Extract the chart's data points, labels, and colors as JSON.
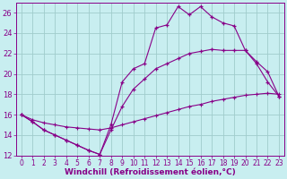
{
  "xlabel": "Windchill (Refroidissement éolien,°C)",
  "bg_color": "#c8eef0",
  "grid_color": "#a0cccc",
  "line_color": "#880088",
  "xlim": [
    -0.5,
    23.5
  ],
  "ylim": [
    12,
    27
  ],
  "xticks": [
    0,
    1,
    2,
    3,
    4,
    5,
    6,
    7,
    8,
    9,
    10,
    11,
    12,
    13,
    14,
    15,
    16,
    17,
    18,
    19,
    20,
    21,
    22,
    23
  ],
  "yticks": [
    12,
    14,
    16,
    18,
    20,
    22,
    24,
    26
  ],
  "series1_x": [
    0,
    1,
    2,
    3,
    4,
    5,
    6,
    7,
    8,
    9,
    10,
    11,
    12,
    13,
    14,
    15,
    16,
    17,
    18,
    19,
    20,
    21,
    22,
    23
  ],
  "series1_y": [
    16.0,
    15.3,
    14.5,
    14.0,
    13.5,
    13.0,
    12.5,
    12.1,
    15.0,
    19.2,
    20.5,
    21.0,
    24.5,
    24.8,
    26.6,
    25.8,
    26.6,
    25.6,
    25.0,
    24.7,
    22.3,
    21.0,
    19.2,
    17.8
  ],
  "series2_x": [
    0,
    1,
    2,
    3,
    4,
    5,
    6,
    7,
    8,
    9,
    10,
    11,
    12,
    13,
    14,
    15,
    16,
    17,
    18,
    19,
    20,
    21,
    22,
    23
  ],
  "series2_y": [
    16.0,
    15.3,
    14.5,
    14.0,
    13.5,
    13.0,
    12.5,
    12.1,
    14.5,
    16.8,
    18.5,
    19.5,
    20.5,
    21.0,
    21.5,
    22.0,
    22.2,
    22.4,
    22.3,
    22.3,
    22.3,
    21.2,
    20.2,
    17.8
  ],
  "series3_x": [
    0,
    1,
    2,
    3,
    4,
    5,
    6,
    7,
    8,
    9,
    10,
    11,
    12,
    13,
    14,
    15,
    16,
    17,
    18,
    19,
    20,
    21,
    22,
    23
  ],
  "series3_y": [
    16.0,
    15.5,
    15.2,
    15.0,
    14.8,
    14.7,
    14.6,
    14.5,
    14.7,
    15.0,
    15.3,
    15.6,
    15.9,
    16.2,
    16.5,
    16.8,
    17.0,
    17.3,
    17.5,
    17.7,
    17.9,
    18.0,
    18.1,
    18.0
  ],
  "axis_color": "#880088",
  "tick_fontsize": 5.5,
  "label_fontsize": 6.5
}
